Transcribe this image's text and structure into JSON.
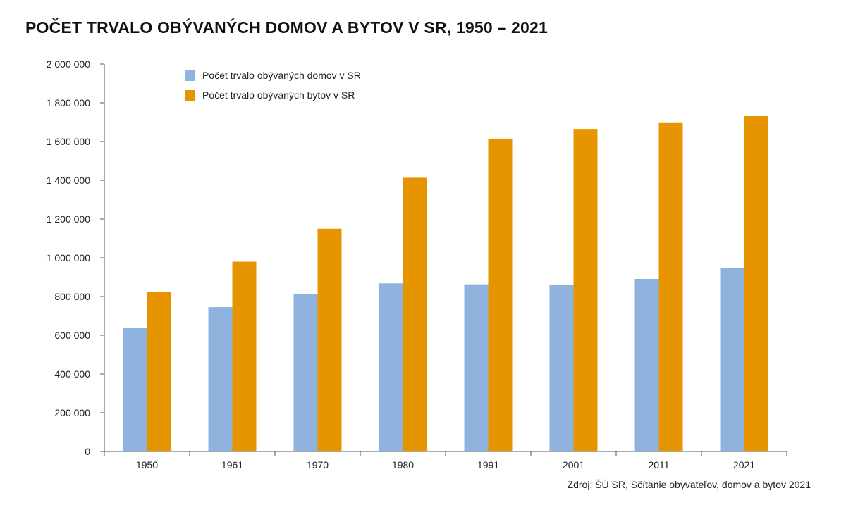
{
  "title": "POČET TRVALO OBÝVANÝCH DOMOV A BYTOV V SR, 1950 – 2021",
  "source": "Zdroj: ŠÚ SR, Sčítanie obyvateľov, domov a bytov 2021",
  "colors": {
    "domy": "#8db3de",
    "byty": "#e69500",
    "axis": "#555555"
  },
  "chart_data": {
    "type": "bar",
    "title": "POČET TRVALO OBÝVANÝCH DOMOV A BYTOV V SR, 1950 – 2021",
    "categories": [
      "1950",
      "1961",
      "1970",
      "1980",
      "1991",
      "2001",
      "2011",
      "2021"
    ],
    "series": [
      {
        "name": "Počet trvalo obývaných domov v SR",
        "values": [
          638000,
          745000,
          812000,
          868000,
          863000,
          862000,
          891000,
          948000
        ]
      },
      {
        "name": "Počet trvalo obývaných bytov v SR",
        "values": [
          822000,
          980000,
          1150000,
          1413000,
          1615000,
          1665000,
          1699000,
          1734000
        ]
      }
    ],
    "ylim": [
      0,
      2000000
    ],
    "yticks": [
      0,
      200000,
      400000,
      600000,
      800000,
      1000000,
      1200000,
      1400000,
      1600000,
      1800000,
      2000000
    ],
    "ytick_labels": [
      "0",
      "200 000",
      "400 000",
      "600 000",
      "800 000",
      "1 000 000",
      "1 200 000",
      "1 400 000",
      "1 600 000",
      "1 800 000",
      "2 000 000"
    ],
    "grid": false,
    "legend_position": "top-left"
  }
}
